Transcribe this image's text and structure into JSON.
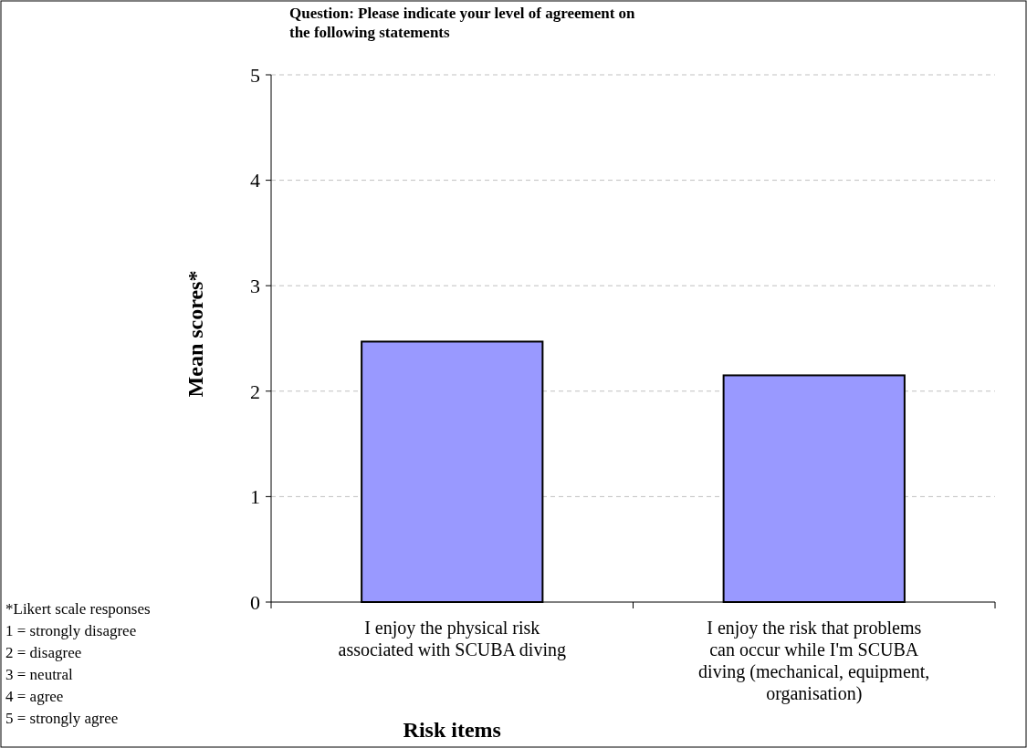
{
  "chart_data": {
    "type": "bar",
    "title": "Question:  Please indicate your level of agreement on the following statements",
    "categories": [
      "I enjoy the physical risk associated with SCUBA diving",
      "I enjoy the risk that problems can occur while I'm SCUBA diving (mechanical, equipment, organisation)"
    ],
    "values": [
      2.47,
      2.15
    ],
    "color": "#9999ff",
    "ylim": [
      0,
      5
    ],
    "yticks": [
      0,
      1,
      2,
      3,
      4,
      5
    ],
    "grid": "y",
    "xlabel": "Risk items",
    "ylabel": "Mean scores*",
    "annotations": [
      "*Likert scale responses",
      "1 = strongly disagree",
      "2 = disagree",
      "3 = neutral",
      "4 = agree",
      "5 = strongly agree"
    ]
  }
}
